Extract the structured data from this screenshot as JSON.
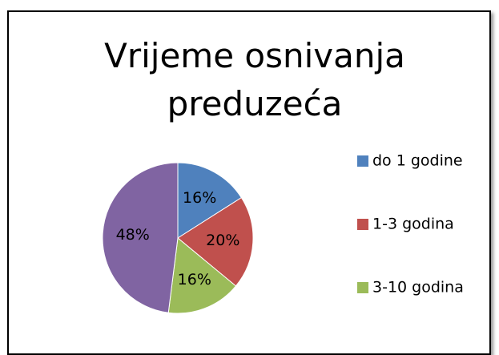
{
  "chart_data": {
    "type": "pie",
    "title": "Vrijeme osnivanja preduzeća",
    "categories": [
      "do 1 godine",
      "1-3 godina",
      "3-10 godina",
      null
    ],
    "values": [
      16,
      20,
      16,
      48
    ],
    "value_labels": [
      "16%",
      "20%",
      "16%",
      "48%"
    ],
    "colors": [
      "#4f81bd",
      "#c0504d",
      "#9bbb59",
      "#8064a2"
    ],
    "legend": "right"
  }
}
